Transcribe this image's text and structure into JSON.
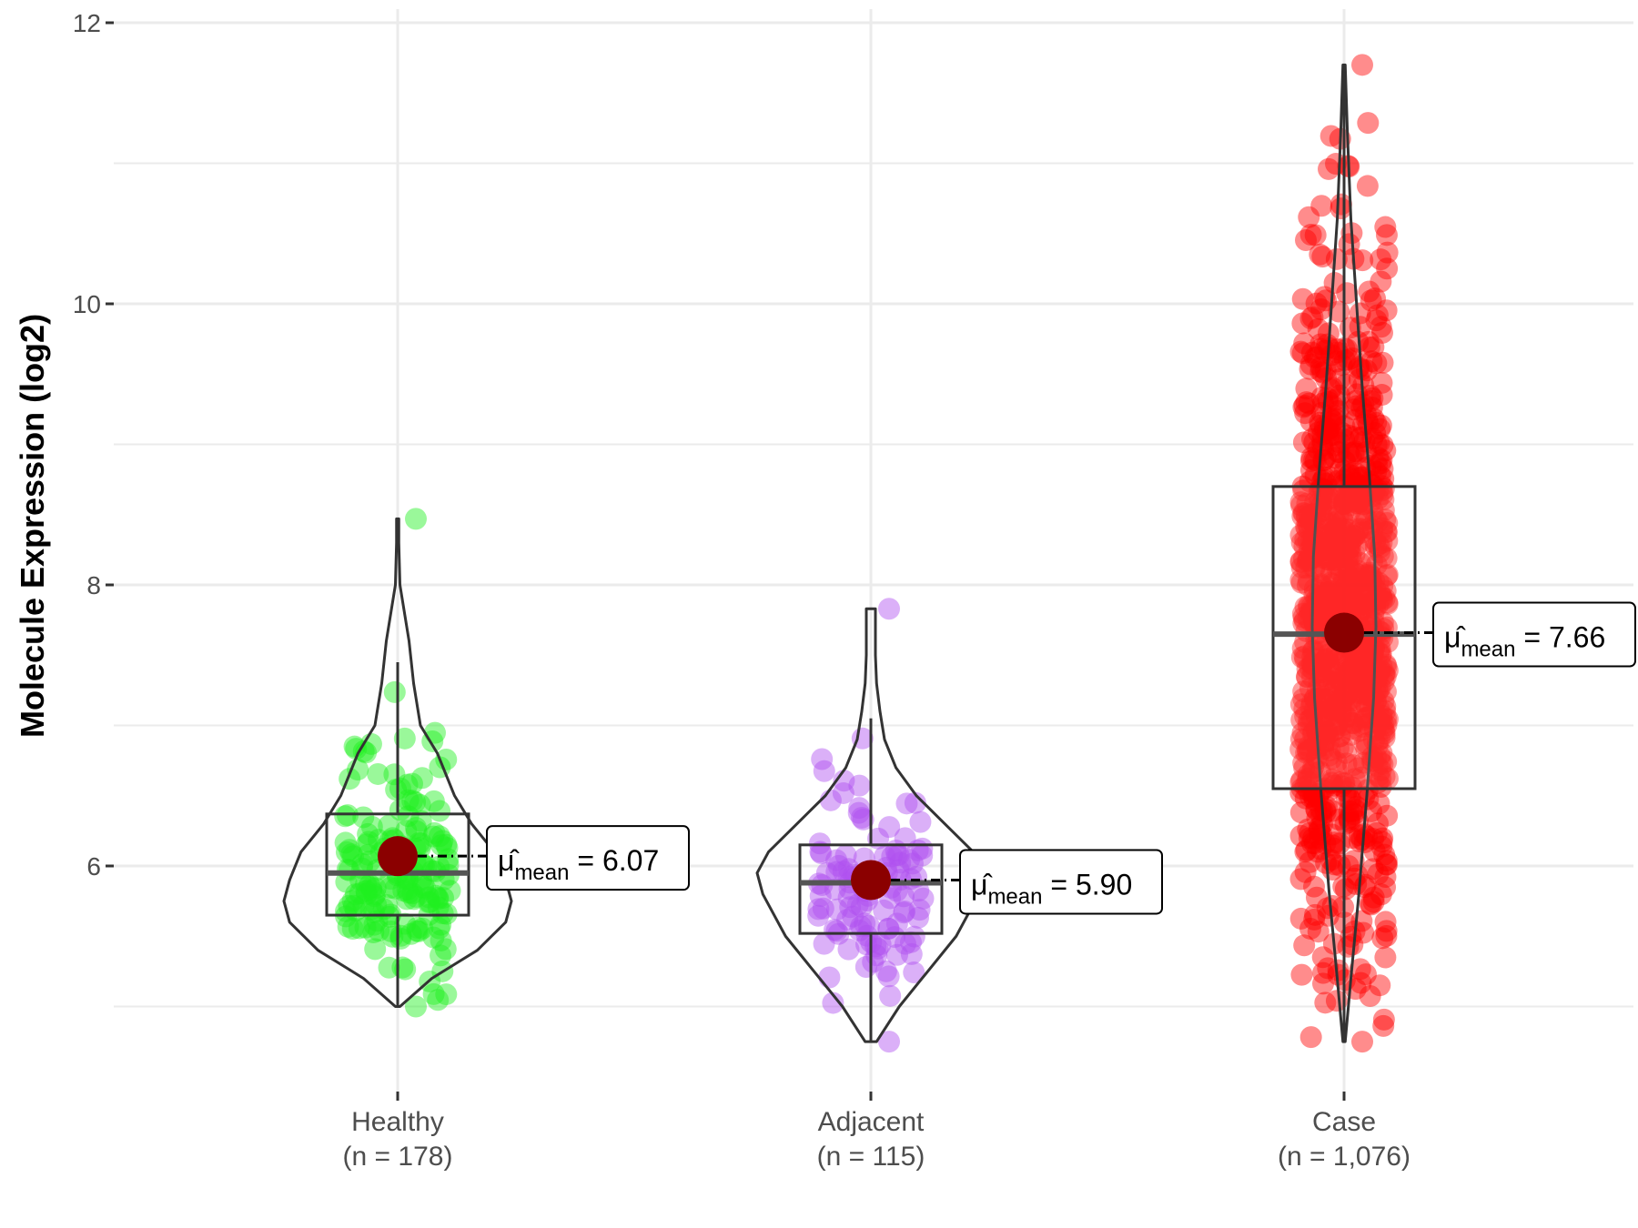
{
  "chart_data": {
    "type": "violin",
    "ylabel": "Molecule Expression (log2)",
    "xlabel": "",
    "ylim": [
      4.3,
      12.1
    ],
    "yticks": [
      6,
      8,
      10,
      12
    ],
    "grid": true,
    "groups": [
      {
        "name": "Healthy",
        "n_label": "(n = 178)",
        "color": "#1ef01e",
        "mean": 6.07,
        "mean_label": "6.07",
        "median": 5.95,
        "q1": 5.65,
        "q3": 6.37,
        "whisker_low": 5.0,
        "whisker_high": 7.45,
        "min": 5.0,
        "max": 8.47,
        "n_points": 178,
        "violin_profile": [
          [
            5.0,
            0.02
          ],
          [
            5.2,
            0.3
          ],
          [
            5.4,
            0.7
          ],
          [
            5.6,
            0.95
          ],
          [
            5.75,
            1.0
          ],
          [
            5.9,
            0.95
          ],
          [
            6.1,
            0.85
          ],
          [
            6.3,
            0.65
          ],
          [
            6.5,
            0.5
          ],
          [
            6.8,
            0.35
          ],
          [
            7.0,
            0.2
          ],
          [
            7.3,
            0.14
          ],
          [
            7.6,
            0.1
          ],
          [
            7.8,
            0.06
          ],
          [
            8.0,
            0.02
          ],
          [
            8.3,
            0.01
          ],
          [
            8.47,
            0.01
          ]
        ]
      },
      {
        "name": "Adjacent",
        "n_label": "(n = 115)",
        "color": "#b050f0",
        "mean": 5.9,
        "mean_label": "5.90",
        "median": 5.88,
        "q1": 5.52,
        "q3": 6.15,
        "whisker_low": 4.75,
        "whisker_high": 7.05,
        "min": 4.75,
        "max": 7.83,
        "n_points": 115,
        "violin_profile": [
          [
            4.75,
            0.05
          ],
          [
            5.0,
            0.25
          ],
          [
            5.2,
            0.45
          ],
          [
            5.5,
            0.75
          ],
          [
            5.8,
            0.95
          ],
          [
            5.95,
            1.0
          ],
          [
            6.1,
            0.9
          ],
          [
            6.3,
            0.65
          ],
          [
            6.5,
            0.4
          ],
          [
            6.7,
            0.22
          ],
          [
            6.9,
            0.12
          ],
          [
            7.1,
            0.08
          ],
          [
            7.3,
            0.05
          ],
          [
            7.5,
            0.04
          ],
          [
            7.7,
            0.04
          ],
          [
            7.83,
            0.04
          ]
        ]
      },
      {
        "name": "Case",
        "n_label": "(n = 1,076)",
        "color": "#ff0000",
        "mean": 7.66,
        "mean_label": "7.66",
        "median": 7.65,
        "q1": 6.55,
        "q3": 8.7,
        "whisker_low": 4.75,
        "whisker_high": 11.65,
        "min": 4.75,
        "max": 11.7,
        "n_points": 1076,
        "violin_profile": [
          [
            4.75,
            0.01
          ],
          [
            5.2,
            0.06
          ],
          [
            5.8,
            0.13
          ],
          [
            6.5,
            0.2
          ],
          [
            7.2,
            0.26
          ],
          [
            7.7,
            0.28
          ],
          [
            8.2,
            0.27
          ],
          [
            8.8,
            0.22
          ],
          [
            9.4,
            0.16
          ],
          [
            10.0,
            0.11
          ],
          [
            10.6,
            0.06
          ],
          [
            11.2,
            0.03
          ],
          [
            11.7,
            0.01
          ]
        ]
      }
    ],
    "mean_symbol": "μ̂",
    "mean_subscript": "mean",
    "mean_eq": "="
  }
}
